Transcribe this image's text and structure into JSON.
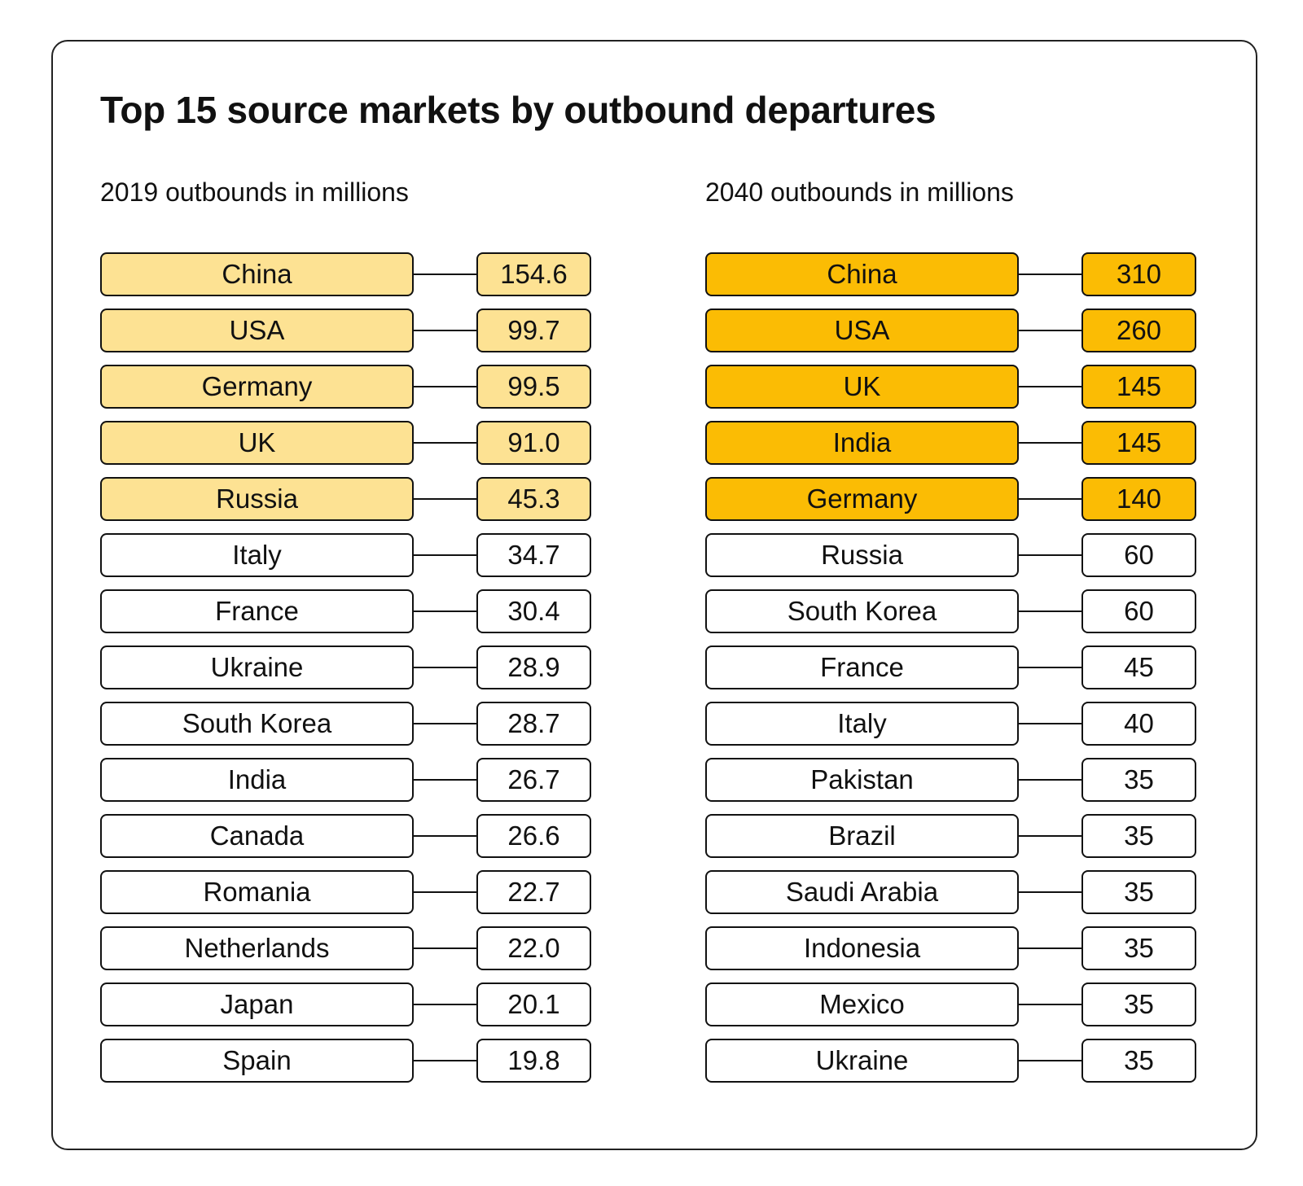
{
  "title": "Top 15 source markets by outbound departures",
  "colors": {
    "highlight_2019": "#FDE293",
    "highlight_2040": "#FBBC04",
    "border": "#111111"
  },
  "columns": [
    {
      "subtitle": "2019 outbounds in millions",
      "rows": [
        {
          "country": "China",
          "value": "154.6",
          "highlight": true
        },
        {
          "country": "USA",
          "value": "99.7",
          "highlight": true
        },
        {
          "country": "Germany",
          "value": "99.5",
          "highlight": true
        },
        {
          "country": "UK",
          "value": "91.0",
          "highlight": true
        },
        {
          "country": "Russia",
          "value": "45.3",
          "highlight": true
        },
        {
          "country": "Italy",
          "value": "34.7",
          "highlight": false
        },
        {
          "country": "France",
          "value": "30.4",
          "highlight": false
        },
        {
          "country": "Ukraine",
          "value": "28.9",
          "highlight": false
        },
        {
          "country": "South Korea",
          "value": "28.7",
          "highlight": false
        },
        {
          "country": "India",
          "value": "26.7",
          "highlight": false
        },
        {
          "country": "Canada",
          "value": "26.6",
          "highlight": false
        },
        {
          "country": "Romania",
          "value": "22.7",
          "highlight": false
        },
        {
          "country": "Netherlands",
          "value": "22.0",
          "highlight": false
        },
        {
          "country": "Japan",
          "value": "20.1",
          "highlight": false
        },
        {
          "country": "Spain",
          "value": "19.8",
          "highlight": false
        }
      ]
    },
    {
      "subtitle": "2040 outbounds in millions",
      "rows": [
        {
          "country": "China",
          "value": "310",
          "highlight": true
        },
        {
          "country": "USA",
          "value": "260",
          "highlight": true
        },
        {
          "country": "UK",
          "value": "145",
          "highlight": true
        },
        {
          "country": "India",
          "value": "145",
          "highlight": true
        },
        {
          "country": "Germany",
          "value": "140",
          "highlight": true
        },
        {
          "country": "Russia",
          "value": "60",
          "highlight": false
        },
        {
          "country": "South Korea",
          "value": "60",
          "highlight": false
        },
        {
          "country": "France",
          "value": "45",
          "highlight": false
        },
        {
          "country": "Italy",
          "value": "40",
          "highlight": false
        },
        {
          "country": "Pakistan",
          "value": "35",
          "highlight": false
        },
        {
          "country": "Brazil",
          "value": "35",
          "highlight": false
        },
        {
          "country": "Saudi Arabia",
          "value": "35",
          "highlight": false
        },
        {
          "country": "Indonesia",
          "value": "35",
          "highlight": false
        },
        {
          "country": "Mexico",
          "value": "35",
          "highlight": false
        },
        {
          "country": "Ukraine",
          "value": "35",
          "highlight": false
        }
      ]
    }
  ]
}
